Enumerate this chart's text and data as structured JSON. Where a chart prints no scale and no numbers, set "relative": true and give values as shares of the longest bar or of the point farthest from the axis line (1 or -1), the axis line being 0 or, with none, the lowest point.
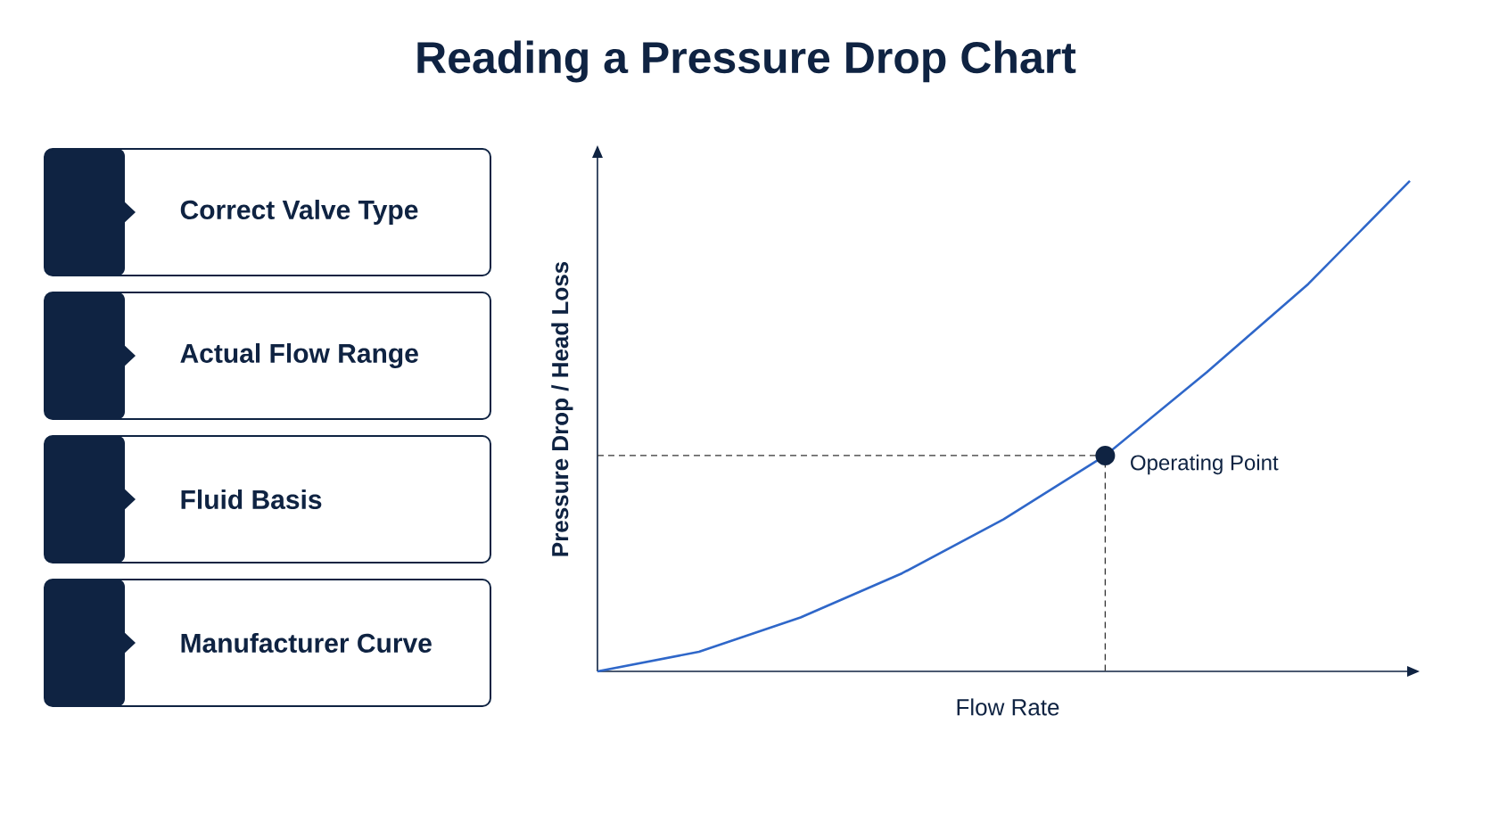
{
  "chart_data": [
    {
      "type": "other",
      "title": "Reading a Pressure Drop Chart",
      "annotations": [
        "Correct Valve Type",
        "Actual Flow Range",
        "Fluid Basis",
        "Manufacturer Curve"
      ]
    },
    {
      "type": "line",
      "relative": true,
      "xlabel": "Flow Rate",
      "ylabel": "Pressure Drop / Head Loss",
      "categories": [
        null,
        null,
        null,
        null,
        null,
        null,
        null,
        null,
        null
      ],
      "series": [
        {
          "color": "#2f67c9",
          "values": [
            0,
            0.04,
            0.11,
            0.2,
            0.31,
            0.44,
            0.61,
            0.79,
            1
          ]
        }
      ],
      "ref_lines": [
        {
          "axis": "y",
          "value": 0.44,
          "line_style": "dashed",
          "color": "#333333"
        }
      ],
      "annotations": [
        "Operating Point"
      ],
      "grid": false
    }
  ]
}
